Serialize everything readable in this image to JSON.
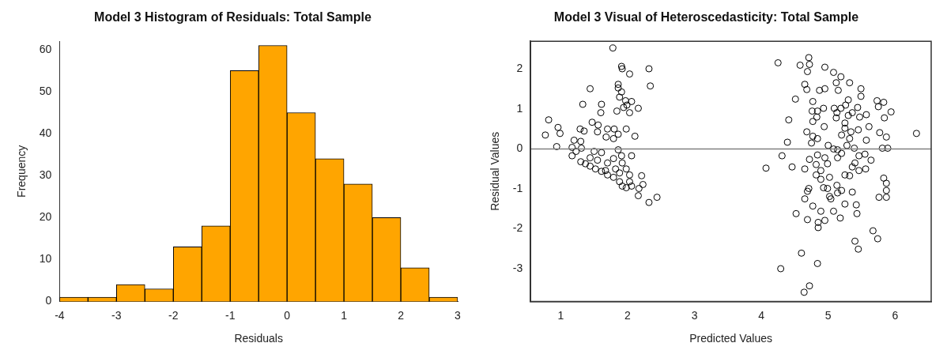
{
  "chart_data": [
    {
      "type": "histogram",
      "title": "Model 3 Histogram of Residuals: Total Sample",
      "xlabel": "Residuals",
      "ylabel": "Frequency",
      "color": "#ffa500",
      "bins": [
        -4,
        -3.5,
        -3,
        -2.5,
        -2,
        -1.5,
        -1,
        -0.5,
        0,
        0.5,
        1,
        1.5,
        2,
        2.5,
        3
      ],
      "values": [
        1,
        1,
        4,
        3,
        13,
        18,
        55,
        61,
        45,
        34,
        28,
        20,
        8,
        1
      ],
      "xlim": [
        -4,
        3
      ],
      "xticks": [
        -4,
        -3,
        -2,
        -1,
        0,
        1,
        2,
        3
      ],
      "ylim": [
        0,
        62
      ],
      "yticks": [
        0,
        10,
        20,
        30,
        40,
        50,
        60
      ]
    },
    {
      "type": "scatter",
      "title": "Model 3 Visual of Heteroscedasticity: Total Sample",
      "xlabel": "Predicted Values",
      "ylabel": "Residual Values",
      "color": "#000000",
      "marker": "circle",
      "x": [
        1.78,
        1.91,
        1.92,
        2.03,
        2.32,
        2.34,
        1.44,
        1.86,
        1.86,
        1.91,
        1.88,
        1.97,
        2.06,
        1.99,
        1.94,
        2.16,
        2.03,
        1.33,
        1.61,
        1.6,
        1.84,
        0.82,
        0.96,
        0.99,
        0.77,
        0.94,
        1.47,
        1.56,
        1.29,
        1.35,
        1.55,
        1.7,
        1.8,
        1.98,
        1.68,
        1.79,
        1.86,
        2.11,
        1.2,
        1.3,
        1.17,
        1.31,
        1.17,
        1.23,
        1.5,
        1.61,
        1.86,
        2.06,
        1.3,
        1.37,
        1.44,
        1.52,
        1.61,
        1.7,
        1.79,
        1.88,
        1.98,
        1.44,
        1.55,
        1.7,
        1.79,
        1.91,
        1.92,
        1.98,
        1.82,
        1.67,
        2.03,
        1.88,
        2.03,
        1.92,
        2.21,
        2.23,
        2.17,
        2.16,
        2.32,
        2.44,
        2.06,
        4.25,
        4.58,
        4.71,
        4.72,
        4.69,
        4.95,
        5.08,
        5.19,
        5.12,
        5.32,
        4.65,
        4.68,
        4.87,
        4.95,
        5.15,
        5.49,
        5.49,
        4.51,
        4.77,
        5.73,
        5.83,
        5.75,
        5.3,
        5.26,
        4.93,
        5.09,
        5.19,
        5.44,
        5.94,
        4.76,
        4.84,
        5.13,
        5.36,
        4.83,
        5.12,
        5.3,
        5.47,
        5.57,
        5.84,
        4.41,
        4.77,
        5.25,
        4.94,
        5.61,
        5.25,
        5.34,
        5.45,
        5.2,
        5.32,
        4.68,
        4.77,
        4.84,
        4.75,
        4.39,
        5.57,
        5.77,
        5.87,
        6.32,
        5.81,
        5.89,
        5.28,
        5.39,
        5.0,
        5.08,
        5.14,
        5.2,
        4.31,
        4.07,
        4.46,
        4.65,
        4.72,
        4.84,
        4.95,
        4.99,
        5.14,
        5.46,
        5.55,
        5.64,
        4.82,
        4.89,
        5.4,
        5.36,
        5.46,
        5.56,
        4.82,
        4.89,
        5.02,
        5.25,
        5.32,
        5.83,
        5.87,
        5.87,
        5.87,
        5.76,
        4.71,
        4.69,
        4.93,
        4.99,
        5.13,
        5.2,
        5.14,
        5.02,
        5.04,
        5.36,
        4.65,
        5.25,
        5.42,
        4.77,
        4.89,
        5.08,
        5.43,
        4.52,
        4.69,
        4.85,
        4.95,
        5.18,
        4.85,
        5.67,
        5.74,
        5.4,
        5.45,
        4.6,
        4.29,
        4.84,
        4.64,
        4.72
      ],
      "values": [
        2.53,
        2.07,
        2.01,
        1.88,
        2.01,
        1.58,
        1.51,
        1.62,
        1.53,
        1.43,
        1.3,
        1.21,
        1.19,
        1.1,
        1.04,
        1.02,
        0.91,
        1.12,
        1.12,
        0.91,
        0.95,
        0.73,
        0.54,
        0.39,
        0.35,
        0.06,
        0.67,
        0.6,
        0.5,
        0.45,
        0.43,
        0.5,
        0.5,
        0.5,
        0.3,
        0.26,
        0.37,
        0.32,
        0.22,
        0.19,
        0.04,
        0.02,
        -0.17,
        -0.06,
        -0.06,
        -0.09,
        -0.02,
        -0.17,
        -0.32,
        -0.37,
        -0.43,
        -0.5,
        -0.56,
        -0.65,
        -0.71,
        -0.82,
        -0.97,
        -0.22,
        -0.28,
        -0.35,
        -0.24,
        -0.17,
        -0.35,
        -0.5,
        -0.5,
        -0.54,
        -0.65,
        -0.6,
        -0.82,
        -0.93,
        -0.67,
        -0.89,
        -0.99,
        -1.17,
        -1.34,
        -1.21,
        -0.93,
        2.16,
        2.1,
        2.29,
        2.12,
        1.94,
        2.05,
        1.92,
        1.81,
        1.66,
        1.66,
        1.62,
        1.49,
        1.47,
        1.51,
        1.47,
        1.51,
        1.32,
        1.25,
        1.19,
        1.21,
        1.17,
        1.06,
        1.23,
        1.1,
        1.02,
        1.02,
        1.02,
        1.04,
        0.93,
        0.95,
        0.95,
        0.91,
        0.91,
        0.8,
        0.78,
        0.84,
        0.8,
        0.86,
        0.78,
        0.73,
        0.69,
        0.65,
        0.56,
        0.56,
        0.52,
        0.43,
        0.48,
        0.35,
        0.26,
        0.43,
        0.32,
        0.26,
        0.15,
        0.17,
        0.22,
        0.41,
        0.3,
        0.39,
        0.02,
        0.02,
        0.09,
        0.02,
        0.09,
        0.0,
        -0.02,
        -0.11,
        -0.17,
        -0.48,
        -0.45,
        -0.5,
        -0.26,
        -0.15,
        -0.22,
        -0.37,
        -0.22,
        -0.17,
        -0.13,
        -0.28,
        -0.39,
        -0.54,
        -0.35,
        -0.45,
        -0.54,
        -0.5,
        -0.65,
        -0.76,
        -0.71,
        -0.65,
        -0.67,
        -0.73,
        -0.86,
        -1.04,
        -1.21,
        -1.21,
        -0.99,
        -1.06,
        -0.97,
        -0.99,
        -0.91,
        -1.04,
        -1.1,
        -1.19,
        -1.25,
        -1.08,
        -1.25,
        -1.38,
        -1.4,
        -1.43,
        -1.56,
        -1.56,
        -1.62,
        -1.62,
        -1.77,
        -1.84,
        -1.79,
        -1.73,
        -1.97,
        -2.05,
        -2.25,
        -2.31,
        -2.51,
        -2.61,
        -3.0,
        -2.87,
        -3.59,
        -3.43
      ],
      "ref_lines": [
        {
          "axis": "y",
          "value": 0,
          "color": "#808080"
        }
      ],
      "xlim": [
        0.55,
        6.54
      ],
      "xticks": [
        1,
        2,
        3,
        4,
        5,
        6
      ],
      "ylim": [
        -3.82,
        2.7
      ],
      "yticks": [
        -3,
        -2,
        -1,
        0,
        1,
        2
      ]
    }
  ]
}
